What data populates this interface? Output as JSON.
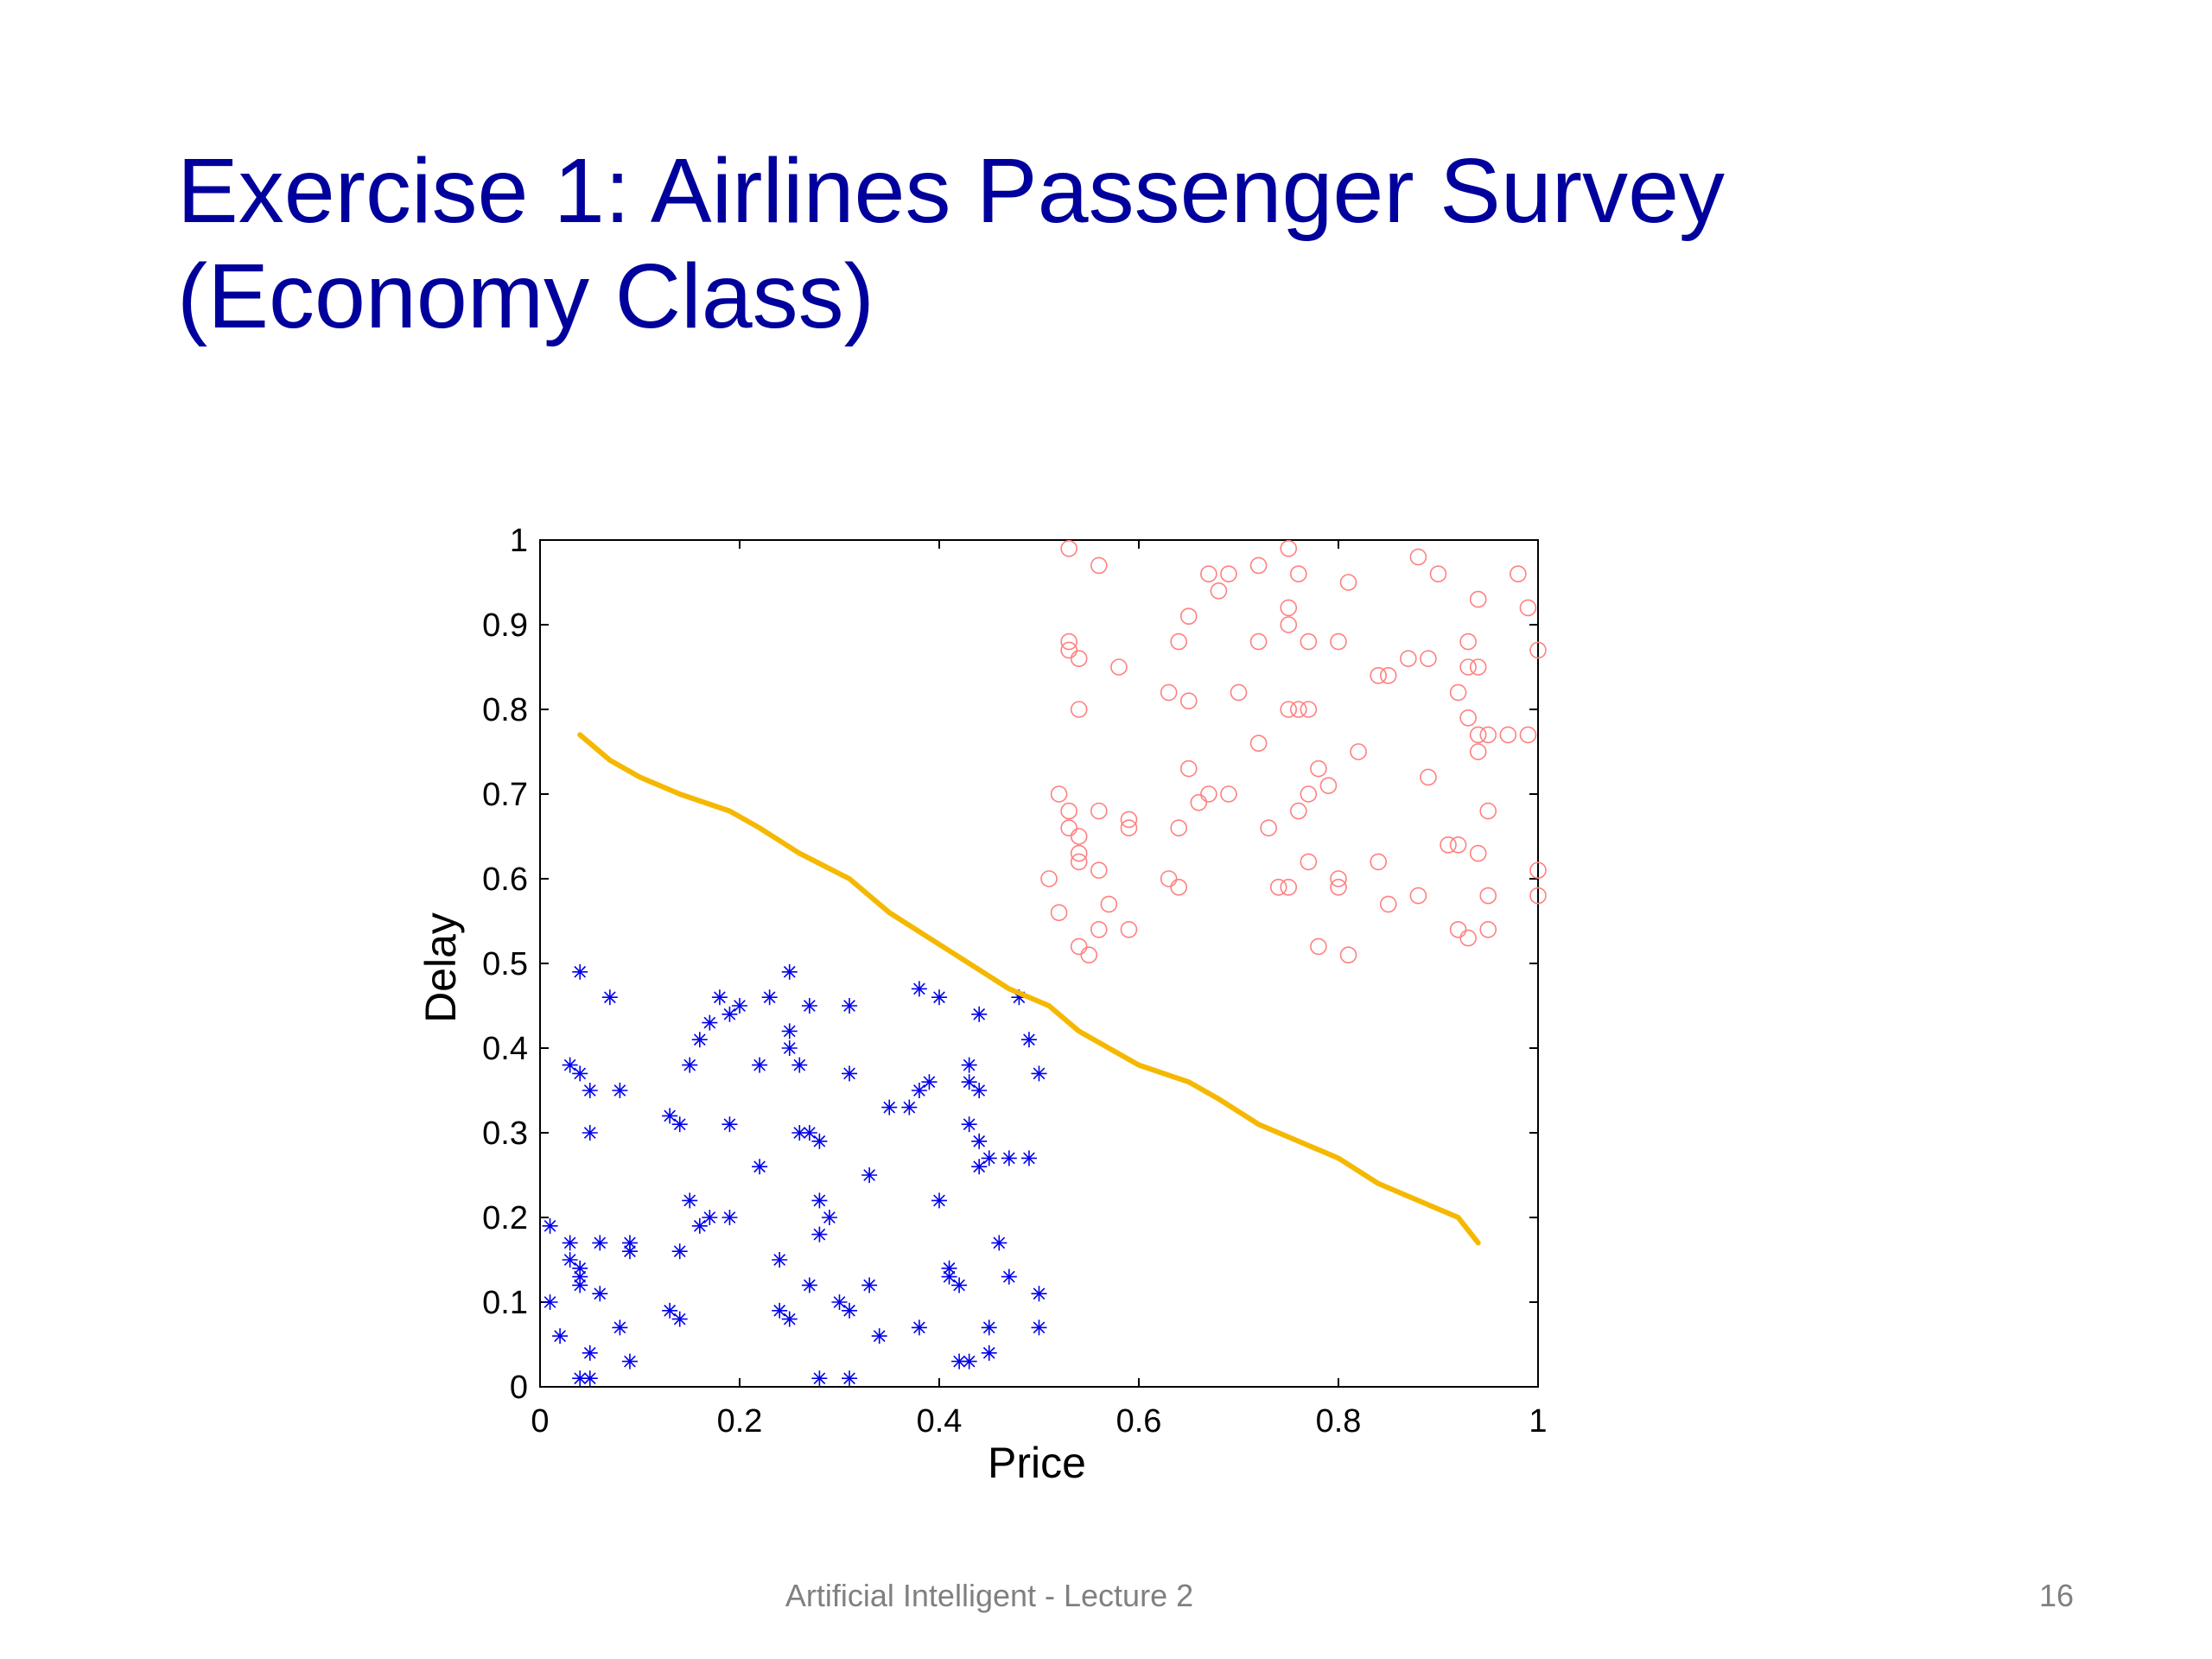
{
  "slide": {
    "title_line1": "Exercise 1: Airlines Passenger Survey",
    "title_line2": "(Economy Class)",
    "footer": "Artificial Intelligent - Lecture 2",
    "page_number": "16"
  },
  "colors": {
    "title": "#00009c",
    "class_low": "#0000ee",
    "class_high": "#ff8080",
    "boundary": "#f5b800",
    "axis": "#000000"
  },
  "chart_data": {
    "type": "scatter",
    "title": "",
    "xlabel": "Price",
    "ylabel": "Delay",
    "xlim": [
      0,
      1
    ],
    "ylim": [
      0,
      1
    ],
    "xticks": [
      "0",
      "0.2",
      "0.4",
      "0.6",
      "0.8",
      "1"
    ],
    "yticks": [
      "0",
      "0.1",
      "0.2",
      "0.3",
      "0.4",
      "0.5",
      "0.6",
      "0.7",
      "0.8",
      "0.9",
      "1"
    ],
    "grid": false,
    "series": [
      {
        "marker": "star",
        "color": "#0000ee",
        "points": [
          [
            0.04,
            0.49
          ],
          [
            0.07,
            0.46
          ],
          [
            0.03,
            0.38
          ],
          [
            0.04,
            0.37
          ],
          [
            0.05,
            0.35
          ],
          [
            0.08,
            0.35
          ],
          [
            0.05,
            0.3
          ],
          [
            0.13,
            0.32
          ],
          [
            0.14,
            0.31
          ],
          [
            0.15,
            0.38
          ],
          [
            0.16,
            0.41
          ],
          [
            0.17,
            0.43
          ],
          [
            0.18,
            0.46
          ],
          [
            0.19,
            0.44
          ],
          [
            0.2,
            0.45
          ],
          [
            0.19,
            0.31
          ],
          [
            0.22,
            0.38
          ],
          [
            0.23,
            0.46
          ],
          [
            0.25,
            0.49
          ],
          [
            0.25,
            0.42
          ],
          [
            0.25,
            0.4
          ],
          [
            0.26,
            0.38
          ],
          [
            0.27,
            0.45
          ],
          [
            0.26,
            0.3
          ],
          [
            0.27,
            0.3
          ],
          [
            0.28,
            0.29
          ],
          [
            0.31,
            0.45
          ],
          [
            0.31,
            0.37
          ],
          [
            0.22,
            0.26
          ],
          [
            0.15,
            0.22
          ],
          [
            0.16,
            0.19
          ],
          [
            0.17,
            0.2
          ],
          [
            0.19,
            0.2
          ],
          [
            0.14,
            0.16
          ],
          [
            0.24,
            0.15
          ],
          [
            0.28,
            0.22
          ],
          [
            0.29,
            0.2
          ],
          [
            0.28,
            0.18
          ],
          [
            0.33,
            0.25
          ],
          [
            0.35,
            0.33
          ],
          [
            0.37,
            0.33
          ],
          [
            0.38,
            0.35
          ],
          [
            0.39,
            0.36
          ],
          [
            0.38,
            0.47
          ],
          [
            0.4,
            0.46
          ],
          [
            0.44,
            0.44
          ],
          [
            0.43,
            0.38
          ],
          [
            0.43,
            0.36
          ],
          [
            0.44,
            0.35
          ],
          [
            0.43,
            0.31
          ],
          [
            0.44,
            0.29
          ],
          [
            0.44,
            0.26
          ],
          [
            0.45,
            0.27
          ],
          [
            0.47,
            0.27
          ],
          [
            0.49,
            0.27
          ],
          [
            0.48,
            0.46
          ],
          [
            0.49,
            0.41
          ],
          [
            0.5,
            0.37
          ],
          [
            0.4,
            0.22
          ],
          [
            0.46,
            0.17
          ],
          [
            0.47,
            0.13
          ],
          [
            0.41,
            0.14
          ],
          [
            0.41,
            0.13
          ],
          [
            0.42,
            0.12
          ],
          [
            0.5,
            0.11
          ],
          [
            0.45,
            0.07
          ],
          [
            0.5,
            0.07
          ],
          [
            0.42,
            0.03
          ],
          [
            0.43,
            0.03
          ],
          [
            0.45,
            0.04
          ],
          [
            0.38,
            0.07
          ],
          [
            0.34,
            0.06
          ],
          [
            0.33,
            0.12
          ],
          [
            0.3,
            0.1
          ],
          [
            0.31,
            0.09
          ],
          [
            0.27,
            0.12
          ],
          [
            0.25,
            0.08
          ],
          [
            0.24,
            0.09
          ],
          [
            0.28,
            0.01
          ],
          [
            0.31,
            0.01
          ],
          [
            0.01,
            0.1
          ],
          [
            0.02,
            0.06
          ],
          [
            0.01,
            0.19
          ],
          [
            0.03,
            0.17
          ],
          [
            0.03,
            0.15
          ],
          [
            0.04,
            0.14
          ],
          [
            0.04,
            0.12
          ],
          [
            0.04,
            0.13
          ],
          [
            0.06,
            0.17
          ],
          [
            0.09,
            0.16
          ],
          [
            0.09,
            0.17
          ],
          [
            0.06,
            0.11
          ],
          [
            0.08,
            0.07
          ],
          [
            0.05,
            0.04
          ],
          [
            0.09,
            0.03
          ],
          [
            0.13,
            0.09
          ],
          [
            0.14,
            0.08
          ],
          [
            0.05,
            0.01
          ],
          [
            0.04,
            0.01
          ]
        ]
      },
      {
        "marker": "circle",
        "color": "#ff8080",
        "points": [
          [
            0.53,
            0.99
          ],
          [
            0.56,
            0.97
          ],
          [
            0.75,
            0.99
          ],
          [
            0.67,
            0.96
          ],
          [
            0.69,
            0.96
          ],
          [
            0.72,
            0.97
          ],
          [
            0.68,
            0.94
          ],
          [
            0.76,
            0.96
          ],
          [
            0.81,
            0.95
          ],
          [
            0.88,
            0.98
          ],
          [
            0.9,
            0.96
          ],
          [
            0.98,
            0.96
          ],
          [
            0.94,
            0.93
          ],
          [
            0.99,
            0.92
          ],
          [
            0.65,
            0.91
          ],
          [
            0.75,
            0.92
          ],
          [
            0.75,
            0.9
          ],
          [
            0.64,
            0.88
          ],
          [
            0.72,
            0.88
          ],
          [
            0.77,
            0.88
          ],
          [
            0.8,
            0.88
          ],
          [
            0.53,
            0.88
          ],
          [
            0.53,
            0.87
          ],
          [
            0.54,
            0.86
          ],
          [
            0.58,
            0.85
          ],
          [
            0.87,
            0.86
          ],
          [
            0.89,
            0.86
          ],
          [
            0.93,
            0.85
          ],
          [
            0.94,
            0.85
          ],
          [
            0.93,
            0.88
          ],
          [
            1.0,
            0.87
          ],
          [
            0.85,
            0.84
          ],
          [
            0.84,
            0.84
          ],
          [
            0.63,
            0.82
          ],
          [
            0.65,
            0.81
          ],
          [
            0.7,
            0.82
          ],
          [
            0.75,
            0.8
          ],
          [
            0.76,
            0.8
          ],
          [
            0.77,
            0.8
          ],
          [
            0.92,
            0.82
          ],
          [
            0.93,
            0.79
          ],
          [
            0.94,
            0.77
          ],
          [
            0.95,
            0.77
          ],
          [
            0.97,
            0.77
          ],
          [
            0.99,
            0.77
          ],
          [
            0.94,
            0.75
          ],
          [
            0.54,
            0.8
          ],
          [
            0.72,
            0.76
          ],
          [
            0.82,
            0.75
          ],
          [
            0.65,
            0.73
          ],
          [
            0.66,
            0.69
          ],
          [
            0.67,
            0.7
          ],
          [
            0.69,
            0.7
          ],
          [
            0.78,
            0.73
          ],
          [
            0.79,
            0.71
          ],
          [
            0.77,
            0.7
          ],
          [
            0.89,
            0.72
          ],
          [
            0.52,
            0.7
          ],
          [
            0.53,
            0.68
          ],
          [
            0.56,
            0.68
          ],
          [
            0.59,
            0.67
          ],
          [
            0.59,
            0.66
          ],
          [
            0.64,
            0.66
          ],
          [
            0.73,
            0.66
          ],
          [
            0.76,
            0.68
          ],
          [
            0.95,
            0.68
          ],
          [
            0.53,
            0.66
          ],
          [
            0.54,
            0.65
          ],
          [
            0.54,
            0.63
          ],
          [
            0.54,
            0.62
          ],
          [
            0.56,
            0.61
          ],
          [
            0.51,
            0.6
          ],
          [
            0.63,
            0.6
          ],
          [
            0.64,
            0.59
          ],
          [
            0.75,
            0.59
          ],
          [
            0.74,
            0.59
          ],
          [
            0.77,
            0.62
          ],
          [
            0.8,
            0.6
          ],
          [
            0.8,
            0.59
          ],
          [
            0.84,
            0.62
          ],
          [
            0.91,
            0.64
          ],
          [
            0.92,
            0.64
          ],
          [
            0.94,
            0.63
          ],
          [
            0.52,
            0.56
          ],
          [
            0.57,
            0.57
          ],
          [
            0.85,
            0.57
          ],
          [
            0.88,
            0.58
          ],
          [
            0.95,
            0.58
          ],
          [
            1.0,
            0.58
          ],
          [
            1.0,
            0.61
          ],
          [
            0.56,
            0.54
          ],
          [
            0.59,
            0.54
          ],
          [
            0.54,
            0.52
          ],
          [
            0.55,
            0.51
          ],
          [
            0.78,
            0.52
          ],
          [
            0.81,
            0.51
          ],
          [
            0.92,
            0.54
          ],
          [
            0.93,
            0.53
          ],
          [
            0.95,
            0.54
          ]
        ]
      },
      {
        "type": "line",
        "color": "#f5b800",
        "points": [
          [
            0.04,
            0.77
          ],
          [
            0.07,
            0.74
          ],
          [
            0.1,
            0.72
          ],
          [
            0.14,
            0.7
          ],
          [
            0.19,
            0.68
          ],
          [
            0.22,
            0.66
          ],
          [
            0.26,
            0.63
          ],
          [
            0.31,
            0.6
          ],
          [
            0.35,
            0.56
          ],
          [
            0.39,
            0.53
          ],
          [
            0.43,
            0.5
          ],
          [
            0.47,
            0.47
          ],
          [
            0.51,
            0.45
          ],
          [
            0.54,
            0.42
          ],
          [
            0.57,
            0.4
          ],
          [
            0.6,
            0.38
          ],
          [
            0.65,
            0.36
          ],
          [
            0.68,
            0.34
          ],
          [
            0.72,
            0.31
          ],
          [
            0.76,
            0.29
          ],
          [
            0.8,
            0.27
          ],
          [
            0.84,
            0.24
          ],
          [
            0.88,
            0.22
          ],
          [
            0.92,
            0.2
          ],
          [
            0.94,
            0.17
          ]
        ]
      }
    ]
  }
}
